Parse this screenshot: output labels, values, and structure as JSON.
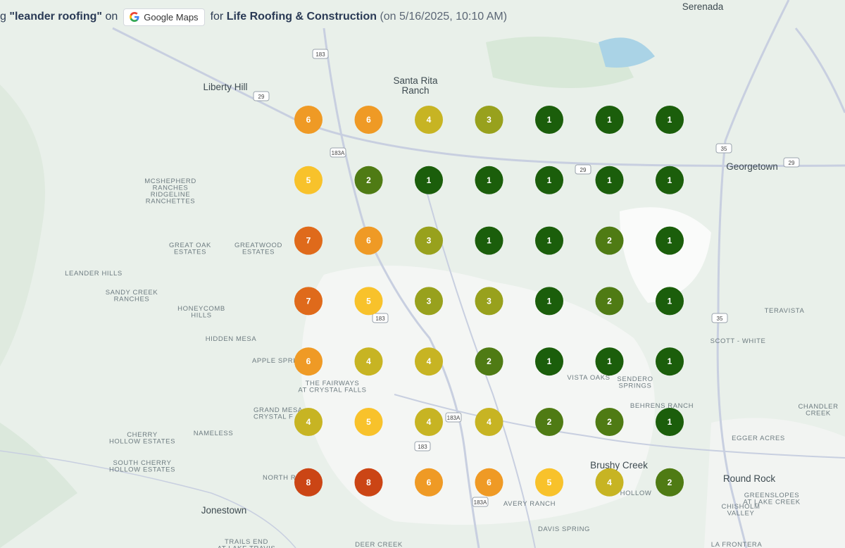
{
  "header": {
    "lead": "g",
    "keyword": "\"leander roofing\"",
    "on": "on",
    "source": "Google Maps",
    "for": "for",
    "business": "Life Roofing & Construction",
    "timestamp": "(on 5/16/2025, 10:10 AM)"
  },
  "grid": {
    "rows": [
      [
        6,
        6,
        4,
        3,
        1,
        1,
        1
      ],
      [
        5,
        2,
        1,
        1,
        1,
        1,
        1
      ],
      [
        7,
        6,
        3,
        1,
        1,
        2,
        1
      ],
      [
        7,
        5,
        3,
        3,
        1,
        2,
        1
      ],
      [
        6,
        4,
        4,
        2,
        1,
        1,
        1
      ],
      [
        4,
        5,
        4,
        4,
        2,
        2,
        1
      ],
      [
        8,
        8,
        6,
        6,
        5,
        4,
        2
      ]
    ],
    "rank_colors": [
      "#1b5e0b",
      "#4f7b14",
      "#98a11d",
      "#c7b423",
      "#f8c22b",
      "#ef9a25",
      "#df6a1b",
      "#cb4515"
    ]
  },
  "map_labels": [
    [
      "Serenada"
    ],
    [
      "Liberty Hill"
    ],
    [
      "Santa Rita",
      "Ranch"
    ],
    [
      "Georgetown"
    ],
    [
      "MCSHEPHERD",
      "RANCHES",
      "RIDGELINE",
      "RANCHETTES"
    ],
    [
      "GREAT OAK",
      "ESTATES"
    ],
    [
      "GREATWOOD",
      "ESTATES"
    ],
    [
      "LEANDER HILLS"
    ],
    [
      "SANDY CREEK",
      "RANCHES"
    ],
    [
      "HONEYCOMB",
      "HILLS"
    ],
    [
      "HIDDEN MESA"
    ],
    [
      "TERAVISTA"
    ],
    [
      "SCOTT - WHITE"
    ],
    [
      "APPLE SPRI"
    ],
    [
      "THE FAIRWAYS",
      "AT CRYSTAL FALLS"
    ],
    [
      "GRAND MESA",
      "CRYSTAL F"
    ],
    [
      "VISTA OAKS"
    ],
    [
      "SENDERO",
      "SPRINGS"
    ],
    [
      "BEHRENS RANCH"
    ],
    [
      "CHANDLER",
      "CREEK"
    ],
    [
      "EGGER ACRES"
    ],
    [
      "NAMELESS"
    ],
    [
      "CHERRY",
      "HOLLOW ESTATES"
    ],
    [
      "SOUTH CHERRY",
      "HOLLOW ESTATES"
    ],
    [
      "NORTH R"
    ],
    [
      "Brushy Creek"
    ],
    [
      "Round Rock"
    ],
    [
      "GREENSLOPES",
      "AT LAKE CREEK"
    ],
    [
      "CHISHOLM",
      "VALLEY"
    ],
    [
      "Jonestown"
    ],
    [
      "AVERY RANCH"
    ],
    [
      "DAVIS SPRING"
    ],
    [
      "TRAILS END",
      "AT LAKE TRAVIS"
    ],
    [
      "DEER CREEK"
    ],
    [
      "LA FRONTERA"
    ],
    [
      "HOLLOW"
    ]
  ],
  "shields": [
    "183",
    "183A",
    "29",
    "29",
    "35",
    "183",
    "183A",
    "183",
    "29",
    "35",
    "183A"
  ]
}
